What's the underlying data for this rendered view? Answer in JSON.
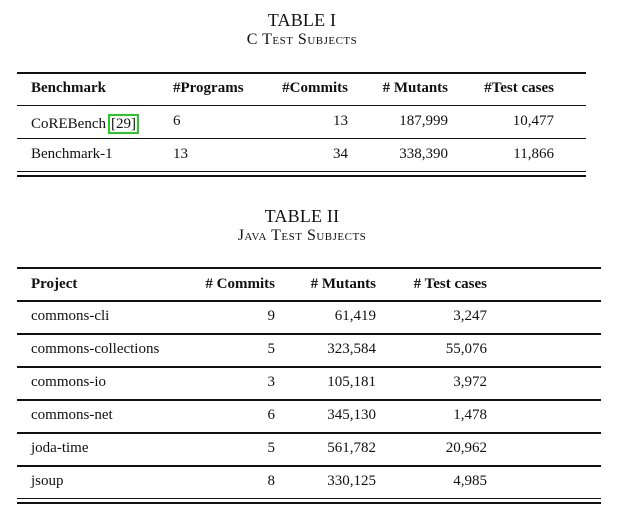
{
  "table1": {
    "number": "TABLE I",
    "title": "C Test Subjects",
    "headers": [
      "Benchmark",
      "#Programs",
      "#Commits",
      "# Mutants",
      "#Test cases"
    ],
    "rows": [
      {
        "name": "CoREBench",
        "cite": "[29]",
        "programs": "6",
        "commits": "13",
        "mutants": "187,999",
        "tests": "10,477"
      },
      {
        "name": "Benchmark-1",
        "programs": "13",
        "commits": "34",
        "mutants": "338,390",
        "tests": "11,866"
      }
    ]
  },
  "table2": {
    "number": "TABLE II",
    "title": "Java Test Subjects",
    "headers": [
      "Project",
      "# Commits",
      "# Mutants",
      "# Test cases"
    ],
    "rows": [
      {
        "project": "commons-cli",
        "commits": "9",
        "mutants": "61,419",
        "tests": "3,247"
      },
      {
        "project": "commons-collections",
        "commits": "5",
        "mutants": "323,584",
        "tests": "55,076"
      },
      {
        "project": "commons-io",
        "commits": "3",
        "mutants": "105,181",
        "tests": "3,972"
      },
      {
        "project": "commons-net",
        "commits": "6",
        "mutants": "345,130",
        "tests": "1,478"
      },
      {
        "project": "joda-time",
        "commits": "5",
        "mutants": "561,782",
        "tests": "20,962"
      },
      {
        "project": "jsoup",
        "commits": "8",
        "mutants": "330,125",
        "tests": "4,985"
      }
    ]
  }
}
